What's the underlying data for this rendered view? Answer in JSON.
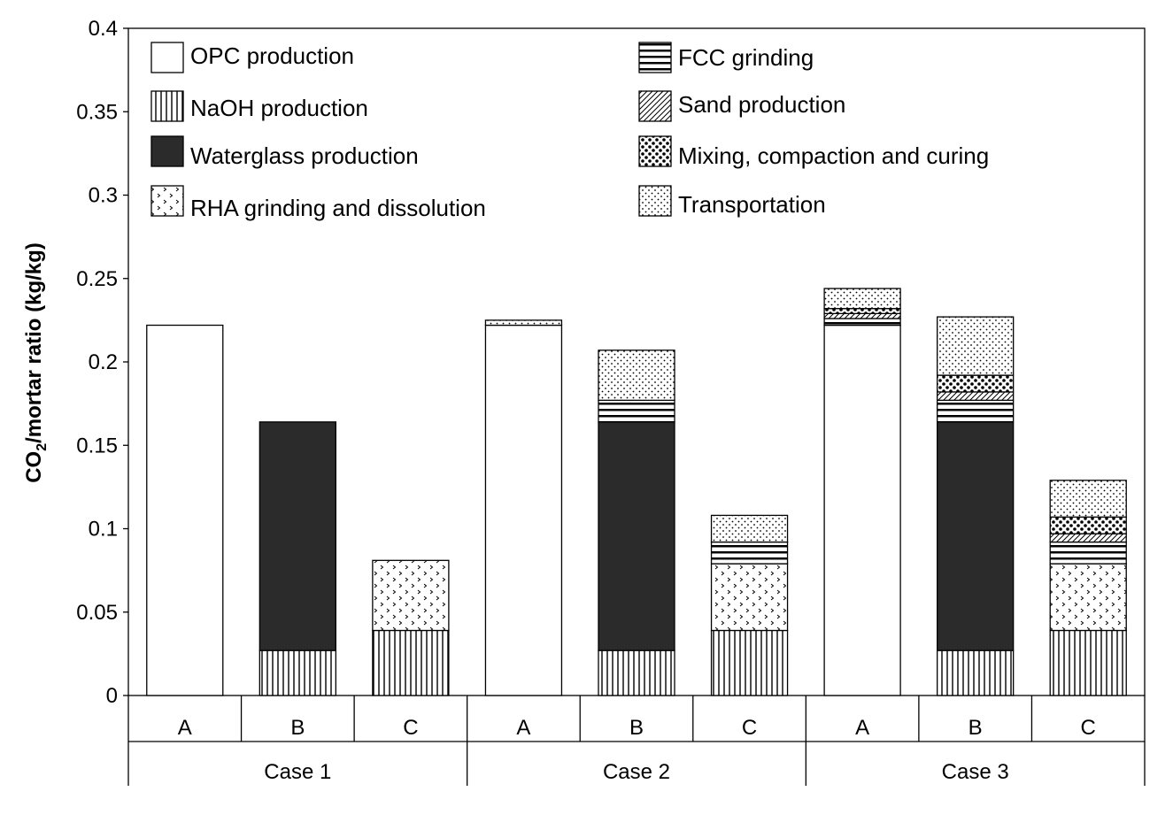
{
  "chart_data": {
    "type": "bar",
    "stacked": true,
    "ylabel_main": "CO",
    "ylabel_sub": "2",
    "ylabel_rest": "/mortar ratio (kg/kg)",
    "ylim": [
      0,
      0.4
    ],
    "yticks": [
      "0",
      "0.05",
      "0.1",
      "0.15",
      "0.2",
      "0.25",
      "0.3",
      "0.35",
      "0.4"
    ],
    "groups": [
      "Case 1",
      "Case 2",
      "Case 3"
    ],
    "categories": [
      "A",
      "B",
      "C",
      "A",
      "B",
      "C",
      "A",
      "B",
      "C"
    ],
    "legend_position": "top",
    "series": [
      {
        "name": "OPC production",
        "pattern": "white",
        "values": [
          0.222,
          0,
          0,
          0.222,
          0,
          0,
          0.222,
          0,
          0
        ]
      },
      {
        "name": "NaOH production",
        "pattern": "vlines",
        "values": [
          0,
          0.027,
          0.039,
          0,
          0.027,
          0.039,
          0,
          0.027,
          0.039
        ]
      },
      {
        "name": "Waterglass production",
        "pattern": "dark",
        "values": [
          0,
          0.137,
          0,
          0,
          0.137,
          0,
          0,
          0.137,
          0
        ]
      },
      {
        "name": "RHA grinding and dissolution",
        "pattern": "chevron",
        "values": [
          0,
          0,
          0.042,
          0,
          0,
          0.04,
          0,
          0,
          0.04
        ]
      },
      {
        "name": "FCC grinding",
        "pattern": "hlines",
        "values": [
          0,
          0,
          0,
          0,
          0.013,
          0.013,
          0.004,
          0.013,
          0.013
        ]
      },
      {
        "name": "Sand production",
        "pattern": "diag",
        "values": [
          0,
          0,
          0,
          0,
          0,
          0,
          0.003,
          0.005,
          0.005
        ]
      },
      {
        "name": "Mixing, compaction and curing",
        "pattern": "bigdots",
        "values": [
          0,
          0,
          0,
          0,
          0,
          0,
          0.003,
          0.01,
          0.01
        ]
      },
      {
        "name": "Transportation",
        "pattern": "dots",
        "values": [
          0,
          0,
          0,
          0.003,
          0.03,
          0.016,
          0.012,
          0.035,
          0.022
        ]
      }
    ]
  }
}
